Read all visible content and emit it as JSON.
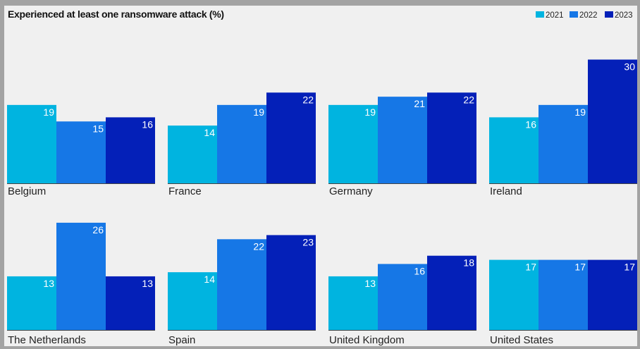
{
  "colors": {
    "background": "#f0f0f0",
    "frame": "#a3a3a3",
    "series_2021": "#00b4e0",
    "series_2022": "#1677e6",
    "series_2023": "#0420b8",
    "baseline": "#444444"
  },
  "chart_data": {
    "type": "bar",
    "title": "Experienced at least one ransomware attack (%)",
    "legend_position": "top-right",
    "series_names": [
      "2021",
      "2022",
      "2023"
    ],
    "ylim": [
      0,
      30
    ],
    "panels": [
      {
        "country": "Belgium",
        "values": [
          19,
          15,
          16
        ]
      },
      {
        "country": "France",
        "values": [
          14,
          19,
          22
        ]
      },
      {
        "country": "Germany",
        "values": [
          19,
          21,
          22
        ]
      },
      {
        "country": "Ireland",
        "values": [
          16,
          19,
          30
        ]
      },
      {
        "country": "The Netherlands",
        "values": [
          13,
          26,
          13
        ]
      },
      {
        "country": "Spain",
        "values": [
          14,
          22,
          23
        ]
      },
      {
        "country": "United Kingdom",
        "values": [
          13,
          16,
          18
        ]
      },
      {
        "country": "United States",
        "values": [
          17,
          17,
          17
        ]
      }
    ]
  }
}
